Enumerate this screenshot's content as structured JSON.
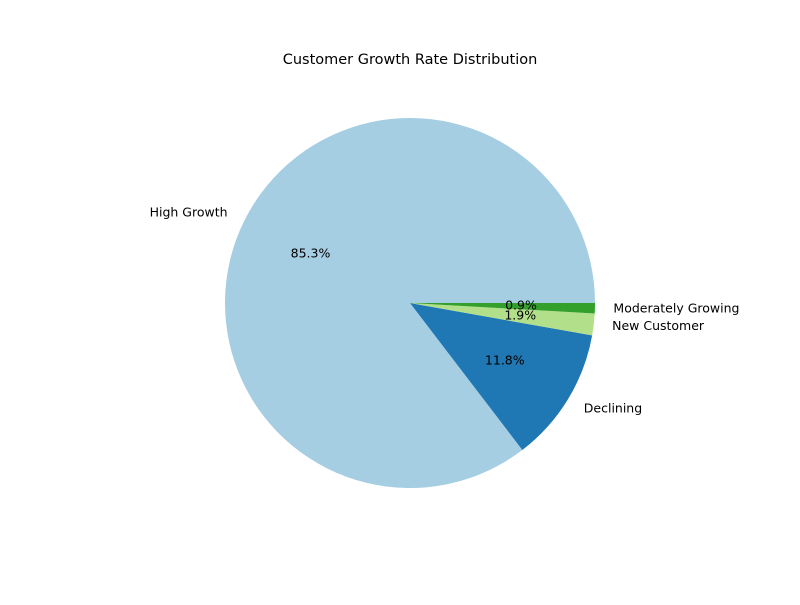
{
  "chart_data": {
    "type": "pie",
    "title": "Customer Growth Rate Distribution",
    "start_angle_deg": 0,
    "direction": "counterclockwise",
    "slices": [
      {
        "label": "High Growth",
        "value": 85.3,
        "pct_label": "85.3%",
        "color": "#a6cee3"
      },
      {
        "label": "Declining",
        "value": 11.8,
        "pct_label": "11.8%",
        "color": "#1f78b4"
      },
      {
        "label": "New Customer",
        "value": 1.9,
        "pct_label": "1.9%",
        "color": "#b2df8a"
      },
      {
        "label": "Moderately Growing",
        "value": 0.9,
        "pct_label": "0.9%",
        "color": "#33a02c"
      }
    ]
  }
}
